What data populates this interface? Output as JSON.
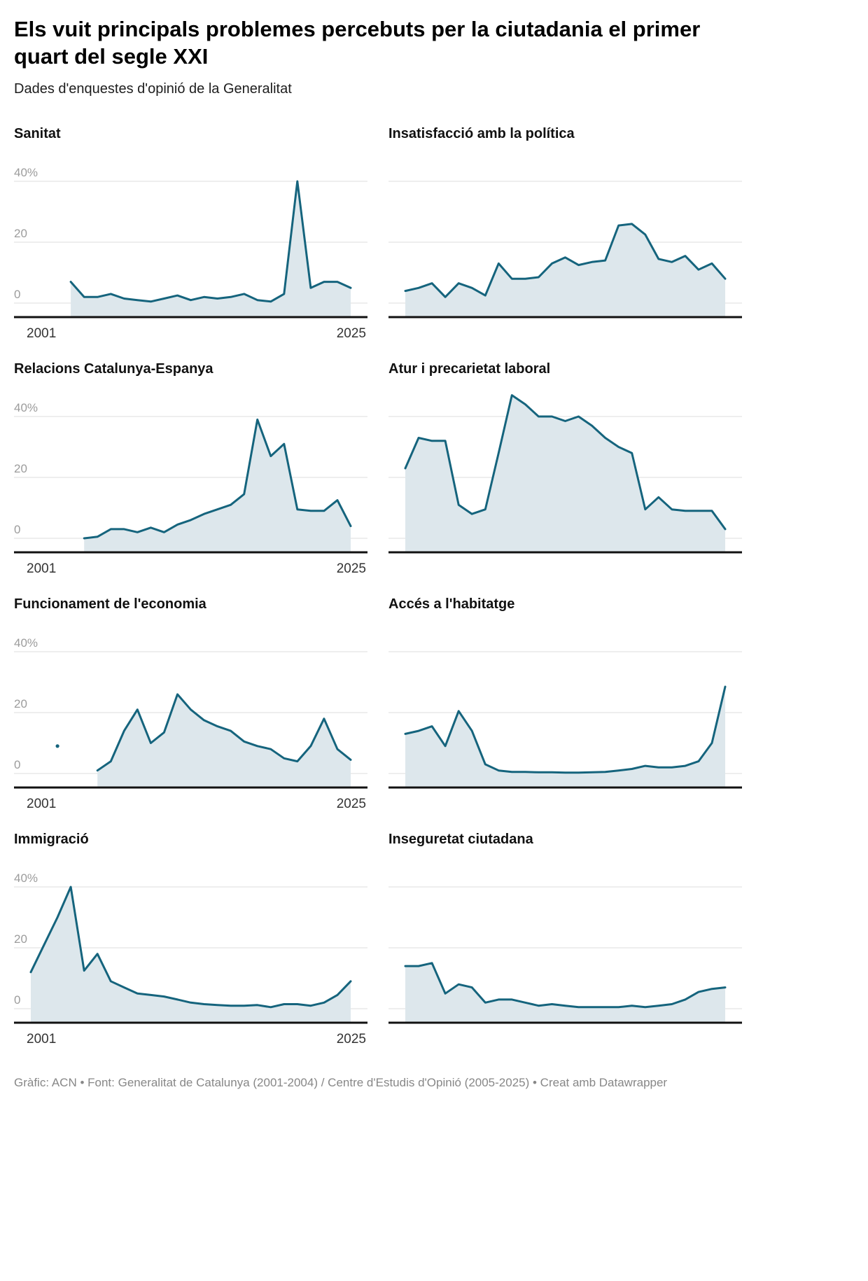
{
  "header": {
    "title": "Els vuit principals problemes percebuts per la ciutadania el primer quart del segle XXI",
    "subtitle": "Dades d'enquestes d'opinió de la Generalitat"
  },
  "footer": {
    "text": "Gràfic: ACN • Font: Generalitat de Catalunya (2001-2004) / Centre d'Estudis d'Opinió (2005-2025) • Creat amb Datawrapper"
  },
  "style": {
    "line_color": "#15647d",
    "fill_color": "#dde7ec",
    "grid_color": "#dcdcdc",
    "baseline_color": "#111111",
    "y_label_color": "#9c9c9c",
    "x_label_color": "#333333"
  },
  "axis": {
    "x_domain": [
      2001,
      2025
    ],
    "x_start_label": "2001",
    "x_end_label": "2025",
    "y_gridlines": [
      0,
      20,
      40
    ],
    "y_ticks": [
      {
        "value": 40,
        "label": "40%"
      },
      {
        "value": 20,
        "label": "20"
      },
      {
        "value": 0,
        "label": "0"
      }
    ],
    "ylim": [
      0,
      47
    ],
    "grid": true,
    "legend": "none"
  },
  "chart_data": [
    {
      "type": "area",
      "id": "sanitat",
      "title": "Sanitat",
      "show_axis_labels": true,
      "x_start": 2004,
      "x_step": 1,
      "values": [
        7,
        2,
        2,
        3,
        1.5,
        1,
        0.5,
        1.5,
        2.5,
        1,
        2,
        1.5,
        2,
        3,
        1,
        0.5,
        3,
        40,
        5,
        7,
        7,
        5
      ]
    },
    {
      "type": "area",
      "id": "insatisfaccio-politica",
      "title": "Insatisfacció amb la política",
      "show_axis_labels": false,
      "x_start": 2001,
      "x_step": 1,
      "values": [
        4,
        5,
        6.5,
        2,
        6.5,
        5,
        2.5,
        13,
        8,
        8,
        8.5,
        13,
        15,
        12.5,
        13.5,
        14,
        25.5,
        26,
        22.5,
        14.5,
        13.5,
        15.5,
        11,
        13,
        8
      ]
    },
    {
      "type": "area",
      "id": "relacions-catalunya-espanya",
      "title": "Relacions Catalunya-Espanya",
      "show_axis_labels": true,
      "x_start": 2005,
      "x_step": 1,
      "values": [
        0,
        0.5,
        3,
        3,
        2,
        3.5,
        2,
        4.5,
        6,
        8,
        9.5,
        11,
        14.5,
        39,
        27,
        31,
        9.5,
        9,
        9,
        12.5,
        4
      ]
    },
    {
      "type": "area",
      "id": "atur-precarietat",
      "title": "Atur i precarietat laboral",
      "show_axis_labels": false,
      "x_start": 2001,
      "x_step": 1,
      "values": [
        23,
        33,
        32,
        32,
        11,
        8,
        9.5,
        28,
        47,
        44,
        40,
        40,
        38.5,
        40,
        37,
        33,
        30,
        28,
        9.5,
        13.5,
        9.5,
        9,
        9,
        9,
        3
      ]
    },
    {
      "type": "area",
      "id": "funcionament-economia",
      "title": "Funcionament de l'economia",
      "show_axis_labels": true,
      "x_start": 2006,
      "x_step": 1,
      "dot": {
        "year": 2003,
        "value": 9
      },
      "values": [
        1,
        4,
        14,
        21,
        10,
        13.5,
        26,
        21,
        17.5,
        15.5,
        14,
        10.5,
        9,
        8,
        5,
        4,
        9,
        18,
        8,
        4.5
      ]
    },
    {
      "type": "area",
      "id": "acces-habitatge",
      "title": "Accés a l'habitatge",
      "show_axis_labels": false,
      "x_start": 2001,
      "x_step": 1,
      "values": [
        13,
        14,
        15.5,
        9,
        20.5,
        14,
        3,
        1,
        0.5,
        0.5,
        0.4,
        0.4,
        0.3,
        0.3,
        0.4,
        0.5,
        1,
        1.5,
        2.5,
        2,
        2,
        2.5,
        4,
        10,
        28.5
      ]
    },
    {
      "type": "area",
      "id": "immigracio",
      "title": "Immigració",
      "show_axis_labels": true,
      "x_start": 2001,
      "x_step": 1,
      "values": [
        12,
        21,
        30,
        40,
        12.5,
        18,
        9,
        7,
        5,
        4.5,
        4,
        3,
        2,
        1.5,
        1.2,
        1,
        1,
        1.2,
        0.5,
        1.5,
        1.5,
        1,
        2,
        4.5,
        9
      ]
    },
    {
      "type": "area",
      "id": "inseguretat-ciutadana",
      "title": "Inseguretat ciutadana",
      "show_axis_labels": false,
      "x_start": 2001,
      "x_step": 1,
      "values": [
        14,
        14,
        15,
        5,
        8,
        7,
        2,
        3,
        3,
        2,
        1,
        1.5,
        1,
        0.5,
        0.5,
        0.5,
        0.5,
        1,
        0.5,
        1,
        1.5,
        3,
        5.5,
        6.5,
        7
      ]
    }
  ]
}
